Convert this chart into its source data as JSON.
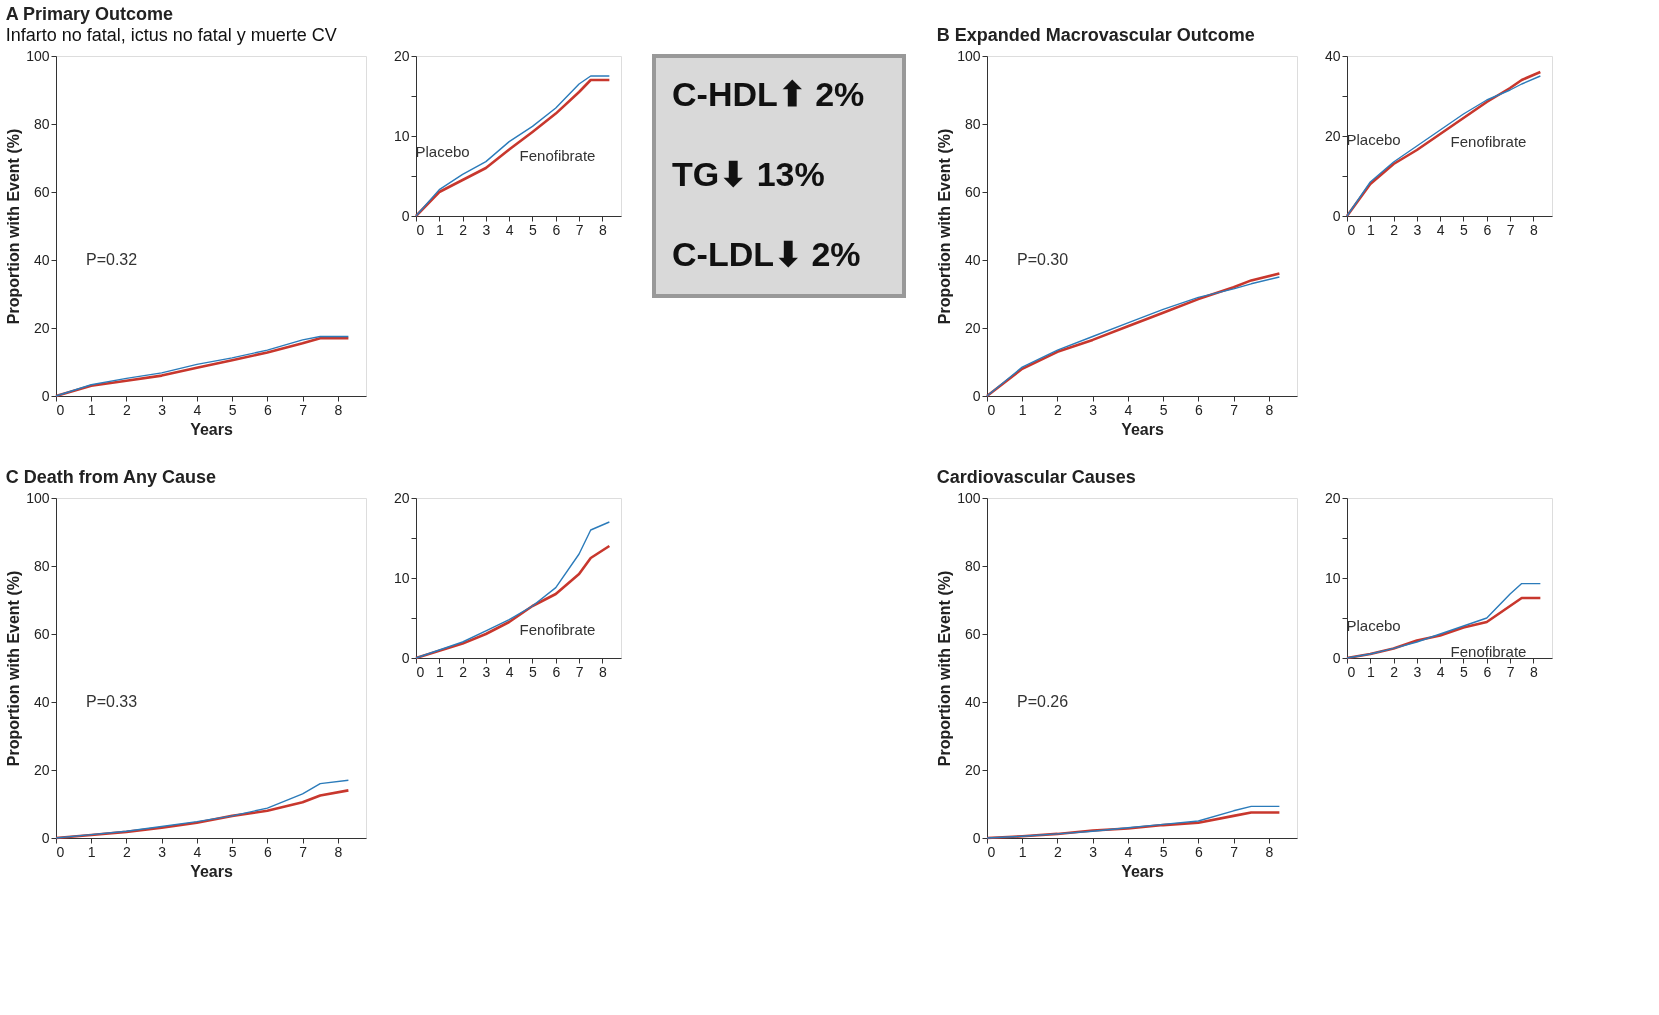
{
  "chart_data": [
    {
      "type": "line",
      "title": "A  Primary Outcome",
      "subtitle": "Infarto no fatal, ictus no fatal y muerte CV",
      "xlabel": "Years",
      "ylabel": "Proportion with Event (%)",
      "annotations": [
        "P=0.32"
      ],
      "x": [
        0,
        1,
        2,
        3,
        4,
        5,
        6,
        7,
        7.5,
        8.3
      ],
      "xlim": [
        0,
        8.8
      ],
      "xticks": [
        0,
        1,
        2,
        3,
        4,
        5,
        6,
        7,
        8
      ],
      "ylim": [
        0,
        100
      ],
      "yticks": [
        0,
        20,
        40,
        60,
        80,
        100
      ],
      "grid": false,
      "series": [
        {
          "color": "#2b7bba",
          "values": [
            0,
            3.3,
            5.2,
            6.8,
            9.3,
            11.2,
            13.5,
            16.5,
            17.5,
            17.5
          ]
        },
        {
          "color": "#c8372d",
          "values": [
            0,
            3,
            4.5,
            6,
            8.3,
            10.5,
            12.8,
            15.5,
            17,
            17
          ]
        }
      ]
    },
    {
      "type": "line",
      "x": [
        0,
        1,
        2,
        3,
        4,
        5,
        6,
        7,
        7.5,
        8.3
      ],
      "xlim": [
        0,
        8.8
      ],
      "xticks": [
        0,
        1,
        2,
        3,
        4,
        5,
        6,
        7,
        8
      ],
      "ylim": [
        0,
        20
      ],
      "yticks": [
        0,
        {
          "value": 5,
          "label": null
        },
        10,
        {
          "value": 15,
          "label": null
        },
        20
      ],
      "grid": false,
      "series": [
        {
          "name": "Placebo",
          "color": "#2b7bba",
          "values": [
            0,
            3.3,
            5.2,
            6.8,
            9.3,
            11.2,
            13.5,
            16.5,
            17.5,
            17.5
          ]
        },
        {
          "name": "Fenofibrate",
          "color": "#c8372d",
          "values": [
            0,
            3,
            4.5,
            6,
            8.3,
            10.5,
            12.8,
            15.5,
            17,
            17
          ]
        }
      ]
    },
    {
      "type": "line",
      "title": "B  Expanded Macrovascular Outcome",
      "xlabel": "Years",
      "ylabel": "Proportion with Event (%)",
      "annotations": [
        "P=0.30"
      ],
      "x": [
        0,
        1,
        2,
        3,
        4,
        5,
        6,
        7,
        7.5,
        8.3
      ],
      "xlim": [
        0,
        8.8
      ],
      "xticks": [
        0,
        1,
        2,
        3,
        4,
        5,
        6,
        7,
        8
      ],
      "ylim": [
        0,
        100
      ],
      "yticks": [
        0,
        20,
        40,
        60,
        80,
        100
      ],
      "grid": false,
      "series": [
        {
          "color": "#2b7bba",
          "values": [
            0,
            8.5,
            13.5,
            17.5,
            21.5,
            25.5,
            29,
            31.5,
            33,
            35
          ]
        },
        {
          "color": "#c8372d",
          "values": [
            0,
            8,
            13,
            16.5,
            20.5,
            24.5,
            28.5,
            32,
            34,
            36
          ]
        }
      ]
    },
    {
      "type": "line",
      "x": [
        0,
        1,
        2,
        3,
        4,
        5,
        6,
        7,
        7.5,
        8.3
      ],
      "xlim": [
        0,
        8.8
      ],
      "xticks": [
        0,
        1,
        2,
        3,
        4,
        5,
        6,
        7,
        8
      ],
      "ylim": [
        0,
        40
      ],
      "yticks": [
        0,
        {
          "value": 10,
          "label": null
        },
        20,
        {
          "value": 30,
          "label": null
        },
        40
      ],
      "grid": false,
      "series": [
        {
          "name": "Placebo",
          "color": "#2b7bba",
          "values": [
            0,
            8.5,
            13.5,
            17.5,
            21.5,
            25.5,
            29,
            31.5,
            33,
            35
          ]
        },
        {
          "name": "Fenofibrate",
          "color": "#c8372d",
          "values": [
            0,
            8,
            13,
            16.5,
            20.5,
            24.5,
            28.5,
            32,
            34,
            36
          ]
        }
      ]
    },
    {
      "type": "other",
      "annotations": [
        "C-HDL⬆ 2%",
        "TG⬇ 13%",
        "C-LDL⬇ 2%"
      ]
    },
    {
      "type": "line",
      "title": "C  Death from Any Cause",
      "xlabel": "Years",
      "ylabel": "Proportion with Event (%)",
      "annotations": [
        "P=0.33"
      ],
      "x": [
        0,
        1,
        2,
        3,
        4,
        5,
        6,
        7,
        7.5,
        8.3
      ],
      "xlim": [
        0,
        8.8
      ],
      "xticks": [
        0,
        1,
        2,
        3,
        4,
        5,
        6,
        7,
        8
      ],
      "ylim": [
        0,
        100
      ],
      "yticks": [
        0,
        20,
        40,
        60,
        80,
        100
      ],
      "grid": false,
      "series": [
        {
          "color": "#2b7bba",
          "values": [
            0,
            1,
            2,
            3.4,
            4.8,
            6.5,
            8.8,
            13,
            16,
            17
          ]
        },
        {
          "color": "#c8372d",
          "values": [
            0,
            0.9,
            1.8,
            3,
            4.5,
            6.5,
            8,
            10.5,
            12.5,
            14
          ]
        }
      ]
    },
    {
      "type": "line",
      "x": [
        0,
        1,
        2,
        3,
        4,
        5,
        6,
        7,
        7.5,
        8.3
      ],
      "xlim": [
        0,
        8.8
      ],
      "xticks": [
        0,
        1,
        2,
        3,
        4,
        5,
        6,
        7,
        8
      ],
      "ylim": [
        0,
        20
      ],
      "yticks": [
        0,
        {
          "value": 5,
          "label": null
        },
        10,
        {
          "value": 15,
          "label": null
        },
        20
      ],
      "grid": false,
      "series": [
        {
          "color": "#2b7bba",
          "values": [
            0,
            1,
            2,
            3.4,
            4.8,
            6.5,
            8.8,
            13,
            16,
            17
          ]
        },
        {
          "name": "Fenofibrate",
          "color": "#c8372d",
          "values": [
            0,
            0.9,
            1.8,
            3,
            4.5,
            6.5,
            8,
            10.5,
            12.5,
            14
          ]
        }
      ]
    },
    {
      "type": "line",
      "title": "Cardiovascular Causes",
      "xlabel": "Years",
      "ylabel": "Proportion with Event (%)",
      "annotations": [
        "P=0.26"
      ],
      "x": [
        0,
        1,
        2,
        3,
        4,
        5,
        6,
        7,
        7.5,
        8.3
      ],
      "xlim": [
        0,
        8.8
      ],
      "xticks": [
        0,
        1,
        2,
        3,
        4,
        5,
        6,
        7,
        8
      ],
      "ylim": [
        0,
        100
      ],
      "yticks": [
        0,
        20,
        40,
        60,
        80,
        100
      ],
      "grid": false,
      "series": [
        {
          "color": "#2b7bba",
          "values": [
            0,
            0.5,
            1.2,
            2,
            3,
            4,
            5,
            8,
            9.3,
            9.3
          ]
        },
        {
          "color": "#c8372d",
          "values": [
            0,
            0.5,
            1.2,
            2.2,
            2.8,
            3.8,
            4.5,
            6.5,
            7.5,
            7.5
          ]
        }
      ]
    },
    {
      "type": "line",
      "x": [
        0,
        1,
        2,
        3,
        4,
        5,
        6,
        7,
        7.5,
        8.3
      ],
      "xlim": [
        0,
        8.8
      ],
      "xticks": [
        0,
        1,
        2,
        3,
        4,
        5,
        6,
        7,
        8
      ],
      "ylim": [
        0,
        20
      ],
      "yticks": [
        0,
        {
          "value": 5,
          "label": null
        },
        10,
        {
          "value": 15,
          "label": null
        },
        20
      ],
      "grid": false,
      "series": [
        {
          "name": "Placebo",
          "color": "#2b7bba",
          "values": [
            0,
            0.5,
            1.2,
            2,
            3,
            4,
            5,
            8,
            9.3,
            9.3
          ]
        },
        {
          "name": "Fenofibrate",
          "color": "#c8372d",
          "values": [
            0,
            0.5,
            1.2,
            2.2,
            2.8,
            3.8,
            4.5,
            6.5,
            7.5,
            7.5
          ]
        }
      ]
    }
  ]
}
